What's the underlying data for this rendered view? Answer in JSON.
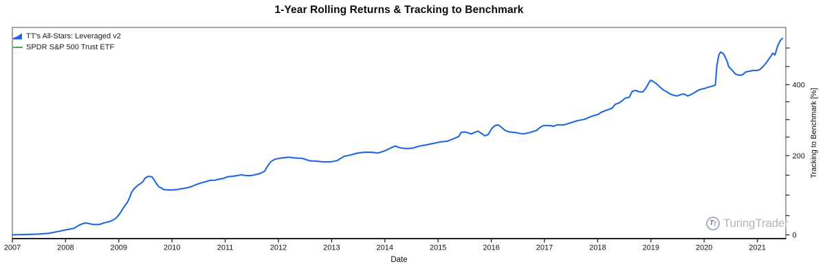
{
  "title": "1-Year Rolling Returns & Tracking to Benchmark",
  "legend": {
    "items": [
      {
        "label": "TT's All-Stars: Leveraged v2",
        "swatch": "blue-area-wedge",
        "color": "#1c67de"
      },
      {
        "label": "SPDR S&P 500 Trust ETF",
        "swatch": "green-line",
        "color": "#2eb849"
      }
    ]
  },
  "x_axis": {
    "label": "Date",
    "ticks": [
      "2007",
      "2008",
      "2009",
      "2010",
      "2011",
      "2012",
      "2013",
      "2014",
      "2015",
      "2016",
      "2017",
      "2018",
      "2019",
      "2020",
      "2021"
    ]
  },
  "y_axis_right": {
    "label": "Tracking to Benchmark [%]",
    "labeled_ticks": [
      {
        "value": 0,
        "label": "0"
      },
      {
        "value": 200,
        "label": "200"
      },
      {
        "value": 400,
        "label": "400"
      }
    ],
    "minor_tick_step": 50,
    "minor_tick_max": 500
  },
  "watermark": {
    "text": "TuringTrader",
    "icon": "turingtrader-tt-logo"
  },
  "colors": {
    "series_primary": "#1c67de",
    "series_benchmark": "#2eb849",
    "axis": "#1c1c1c",
    "border": "#4a4a4a",
    "tick_label": "#111111",
    "watermark_text": "#b4b4b4"
  },
  "chart_data": {
    "type": "line",
    "title": "1-Year Rolling Returns & Tracking to Benchmark",
    "xlabel": "Date",
    "ylabel": "Tracking to Benchmark [%]",
    "x_unit": "decimal_year",
    "xlim": [
      2007.0,
      2021.55
    ],
    "ylim": [
      0,
      557
    ],
    "grid": false,
    "legend_position": "top-left",
    "y_axis_side": "right",
    "series": [
      {
        "name": "TT's All-Stars: Leveraged v2",
        "color": "#1c67de",
        "points": [
          [
            2007.0,
            0
          ],
          [
            2007.28,
            1
          ],
          [
            2007.48,
            2
          ],
          [
            2007.68,
            4
          ],
          [
            2007.87,
            9
          ],
          [
            2008.01,
            13
          ],
          [
            2008.16,
            17
          ],
          [
            2008.25,
            25
          ],
          [
            2008.32,
            29
          ],
          [
            2008.38,
            31
          ],
          [
            2008.51,
            27
          ],
          [
            2008.64,
            27
          ],
          [
            2008.72,
            31
          ],
          [
            2008.81,
            34
          ],
          [
            2008.9,
            39
          ],
          [
            2008.96,
            45
          ],
          [
            2009.03,
            57
          ],
          [
            2009.09,
            70
          ],
          [
            2009.16,
            82
          ],
          [
            2009.2,
            93
          ],
          [
            2009.24,
            107
          ],
          [
            2009.29,
            116
          ],
          [
            2009.33,
            121
          ],
          [
            2009.36,
            125
          ],
          [
            2009.42,
            130
          ],
          [
            2009.45,
            133
          ],
          [
            2009.49,
            142
          ],
          [
            2009.55,
            147
          ],
          [
            2009.62,
            146
          ],
          [
            2009.67,
            137
          ],
          [
            2009.71,
            128
          ],
          [
            2009.75,
            121
          ],
          [
            2009.8,
            118
          ],
          [
            2009.84,
            114
          ],
          [
            2009.93,
            113
          ],
          [
            2010.01,
            113
          ],
          [
            2010.1,
            114
          ],
          [
            2010.19,
            116
          ],
          [
            2010.27,
            118
          ],
          [
            2010.36,
            121
          ],
          [
            2010.45,
            126
          ],
          [
            2010.53,
            130
          ],
          [
            2010.62,
            133
          ],
          [
            2010.71,
            137
          ],
          [
            2010.79,
            137
          ],
          [
            2010.88,
            140
          ],
          [
            2010.97,
            142
          ],
          [
            2011.04,
            146
          ],
          [
            2011.13,
            147
          ],
          [
            2011.23,
            149
          ],
          [
            2011.3,
            151
          ],
          [
            2011.39,
            149
          ],
          [
            2011.48,
            149
          ],
          [
            2011.56,
            151
          ],
          [
            2011.65,
            154
          ],
          [
            2011.74,
            160
          ],
          [
            2011.78,
            170
          ],
          [
            2011.82,
            178
          ],
          [
            2011.87,
            186
          ],
          [
            2011.94,
            191
          ],
          [
            2012.06,
            194
          ],
          [
            2012.19,
            196
          ],
          [
            2012.32,
            194
          ],
          [
            2012.45,
            193
          ],
          [
            2012.58,
            187
          ],
          [
            2012.71,
            186
          ],
          [
            2012.84,
            184
          ],
          [
            2012.97,
            184
          ],
          [
            2013.1,
            187
          ],
          [
            2013.23,
            198
          ],
          [
            2013.36,
            202
          ],
          [
            2013.49,
            207
          ],
          [
            2013.62,
            209
          ],
          [
            2013.74,
            209
          ],
          [
            2013.87,
            207
          ],
          [
            2014.0,
            213
          ],
          [
            2014.13,
            222
          ],
          [
            2014.2,
            226
          ],
          [
            2014.26,
            222
          ],
          [
            2014.39,
            219
          ],
          [
            2014.52,
            220
          ],
          [
            2014.65,
            226
          ],
          [
            2014.78,
            229
          ],
          [
            2014.91,
            233
          ],
          [
            2015.04,
            237
          ],
          [
            2015.17,
            239
          ],
          [
            2015.3,
            246
          ],
          [
            2015.39,
            252
          ],
          [
            2015.43,
            263
          ],
          [
            2015.49,
            265
          ],
          [
            2015.55,
            263
          ],
          [
            2015.62,
            259
          ],
          [
            2015.68,
            263
          ],
          [
            2015.75,
            267
          ],
          [
            2015.81,
            261
          ],
          [
            2015.88,
            254
          ],
          [
            2015.94,
            257
          ],
          [
            2016.01,
            275
          ],
          [
            2016.07,
            283
          ],
          [
            2016.13,
            285
          ],
          [
            2016.2,
            277
          ],
          [
            2016.26,
            269
          ],
          [
            2016.33,
            265
          ],
          [
            2016.46,
            263
          ],
          [
            2016.59,
            259
          ],
          [
            2016.72,
            263
          ],
          [
            2016.85,
            269
          ],
          [
            2016.91,
            277
          ],
          [
            2016.98,
            283
          ],
          [
            2017.11,
            283
          ],
          [
            2017.17,
            281
          ],
          [
            2017.23,
            285
          ],
          [
            2017.36,
            285
          ],
          [
            2017.49,
            291
          ],
          [
            2017.62,
            297
          ],
          [
            2017.75,
            301
          ],
          [
            2017.88,
            309
          ],
          [
            2018.01,
            315
          ],
          [
            2018.07,
            321
          ],
          [
            2018.14,
            325
          ],
          [
            2018.27,
            332
          ],
          [
            2018.33,
            343
          ],
          [
            2018.4,
            347
          ],
          [
            2018.46,
            353
          ],
          [
            2018.52,
            361
          ],
          [
            2018.59,
            363
          ],
          [
            2018.65,
            381
          ],
          [
            2018.72,
            383
          ],
          [
            2018.78,
            379
          ],
          [
            2018.85,
            379
          ],
          [
            2018.91,
            391
          ],
          [
            2018.98,
            410
          ],
          [
            2019.0,
            412
          ],
          [
            2019.04,
            409
          ],
          [
            2019.1,
            403
          ],
          [
            2019.17,
            393
          ],
          [
            2019.23,
            385
          ],
          [
            2019.3,
            379
          ],
          [
            2019.36,
            373
          ],
          [
            2019.43,
            369
          ],
          [
            2019.49,
            367
          ],
          [
            2019.56,
            371
          ],
          [
            2019.62,
            373
          ],
          [
            2019.69,
            367
          ],
          [
            2019.75,
            371
          ],
          [
            2019.82,
            377
          ],
          [
            2019.88,
            383
          ],
          [
            2019.95,
            387
          ],
          [
            2020.01,
            389
          ],
          [
            2020.08,
            393
          ],
          [
            2020.14,
            395
          ],
          [
            2020.21,
            399
          ],
          [
            2020.24,
            454
          ],
          [
            2020.28,
            483
          ],
          [
            2020.31,
            489
          ],
          [
            2020.36,
            485
          ],
          [
            2020.4,
            474
          ],
          [
            2020.44,
            461
          ],
          [
            2020.46,
            450
          ],
          [
            2020.53,
            439
          ],
          [
            2020.59,
            429
          ],
          [
            2020.66,
            426
          ],
          [
            2020.72,
            427
          ],
          [
            2020.78,
            435
          ],
          [
            2020.85,
            437
          ],
          [
            2020.91,
            439
          ],
          [
            2020.98,
            439
          ],
          [
            2021.04,
            441
          ],
          [
            2021.11,
            450
          ],
          [
            2021.17,
            461
          ],
          [
            2021.24,
            475
          ],
          [
            2021.29,
            486
          ],
          [
            2021.33,
            481
          ],
          [
            2021.38,
            505
          ],
          [
            2021.43,
            520
          ],
          [
            2021.47,
            526
          ]
        ]
      },
      {
        "name": "SPDR S&P 500 Trust ETF",
        "color": "#2eb849",
        "points": [
          [
            2007.0,
            0
          ],
          [
            2021.47,
            0
          ]
        ],
        "note": "benchmark tracks itself at 0%, line lies on the x-axis"
      }
    ]
  }
}
